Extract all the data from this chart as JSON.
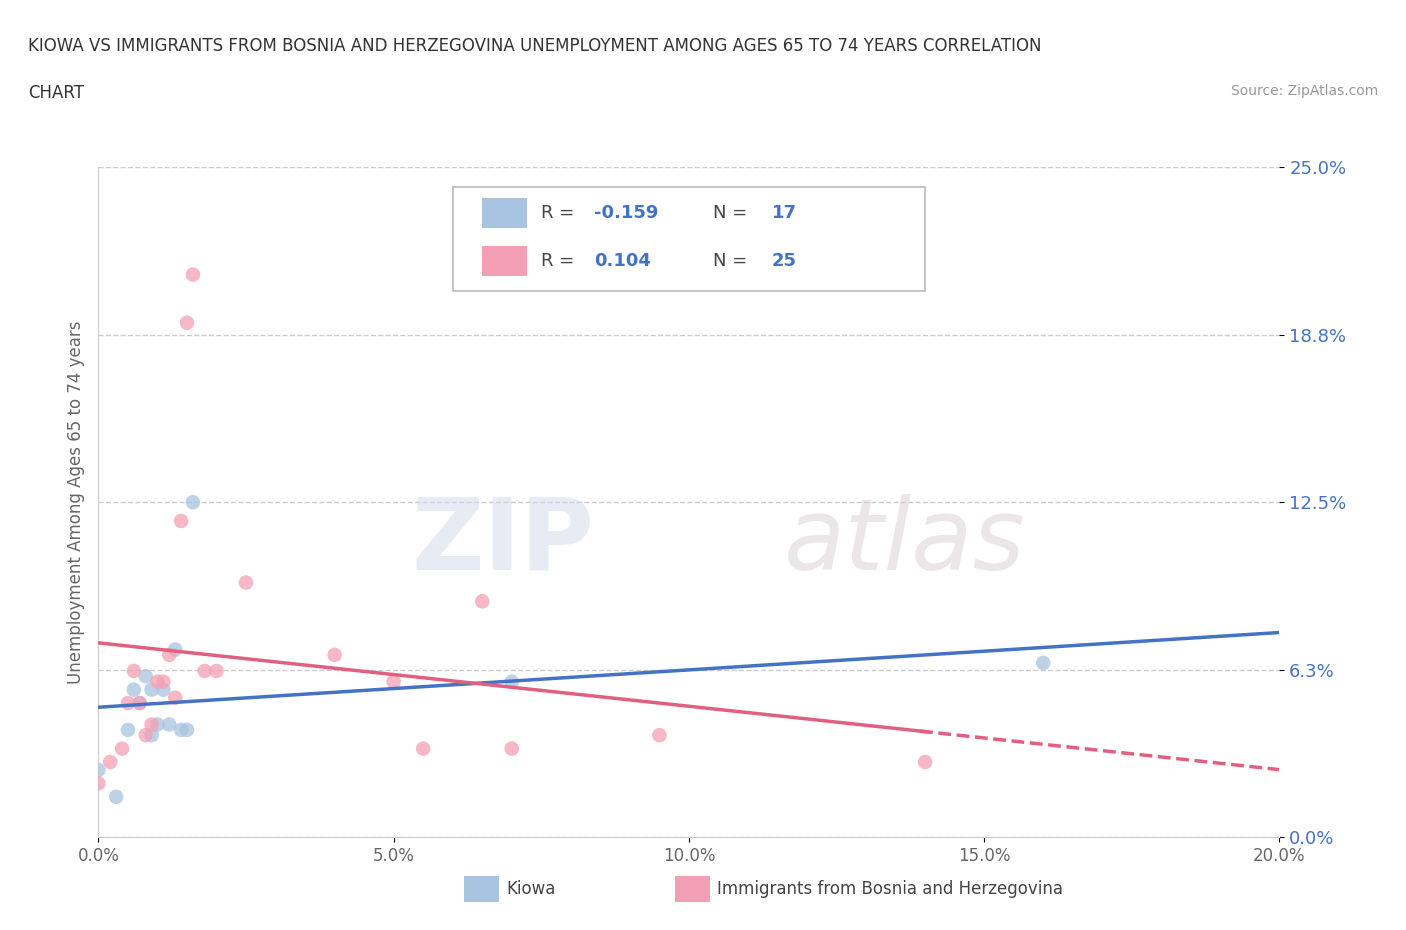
{
  "title_line1": "KIOWA VS IMMIGRANTS FROM BOSNIA AND HERZEGOVINA UNEMPLOYMENT AMONG AGES 65 TO 74 YEARS CORRELATION",
  "title_line2": "CHART",
  "source": "Source: ZipAtlas.com",
  "ylabel": "Unemployment Among Ages 65 to 74 years",
  "xlim": [
    0.0,
    0.2
  ],
  "ylim": [
    0.0,
    0.25
  ],
  "yticks": [
    0.0,
    0.0625,
    0.125,
    0.1875,
    0.25
  ],
  "ytick_labels": [
    "0.0%",
    "6.3%",
    "12.5%",
    "18.8%",
    "25.0%"
  ],
  "xticks": [
    0.0,
    0.05,
    0.1,
    0.15,
    0.2
  ],
  "xtick_labels": [
    "0.0%",
    "5.0%",
    "10.0%",
    "15.0%",
    "20.0%"
  ],
  "kiowa_x": [
    0.0,
    0.003,
    0.005,
    0.006,
    0.007,
    0.008,
    0.009,
    0.009,
    0.01,
    0.011,
    0.012,
    0.013,
    0.014,
    0.015,
    0.016,
    0.07,
    0.16
  ],
  "kiowa_y": [
    0.025,
    0.015,
    0.04,
    0.055,
    0.05,
    0.06,
    0.038,
    0.055,
    0.042,
    0.055,
    0.042,
    0.07,
    0.04,
    0.04,
    0.125,
    0.058,
    0.065
  ],
  "bosnia_x": [
    0.0,
    0.002,
    0.004,
    0.005,
    0.006,
    0.007,
    0.008,
    0.009,
    0.01,
    0.011,
    0.012,
    0.013,
    0.014,
    0.015,
    0.016,
    0.018,
    0.02,
    0.025,
    0.04,
    0.05,
    0.055,
    0.065,
    0.07,
    0.095,
    0.14
  ],
  "bosnia_y": [
    0.02,
    0.028,
    0.033,
    0.05,
    0.062,
    0.05,
    0.038,
    0.042,
    0.058,
    0.058,
    0.068,
    0.052,
    0.118,
    0.192,
    0.21,
    0.062,
    0.062,
    0.095,
    0.068,
    0.058,
    0.033,
    0.088,
    0.033,
    0.038,
    0.028
  ],
  "kiowa_R": -0.159,
  "kiowa_N": 17,
  "bosnia_R": 0.104,
  "bosnia_N": 25,
  "kiowa_color": "#a8c4e0",
  "kiowa_line_color": "#4472c4",
  "bosnia_color": "#f4a0b4",
  "bosnia_line_color": "#e06080",
  "marker_size": 110,
  "marker_alpha": 0.75,
  "watermark_zip": "ZIP",
  "watermark_atlas": "atlas",
  "legend_color": "#4472c4",
  "background_color": "#ffffff",
  "grid_color": "#cccccc"
}
